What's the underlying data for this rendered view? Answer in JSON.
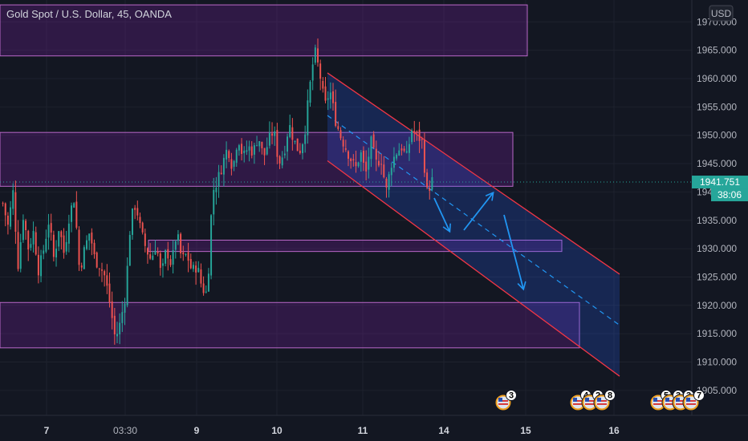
{
  "header": {
    "title": "Gold Spot / U.S. Dollar, 45, OANDA",
    "currency": "USD"
  },
  "price_axis": {
    "ticks": [
      "1970.000",
      "1965.000",
      "1960.000",
      "1955.000",
      "1950.000",
      "1945.000",
      "1940.000",
      "1935.000",
      "1930.000",
      "1925.000",
      "1920.000",
      "1915.000",
      "1910.000",
      "1905.000"
    ],
    "last_price": "1941.751",
    "countdown": "38:06",
    "last_price_color": "#26a69a"
  },
  "time_axis": {
    "labels": [
      {
        "text": "7",
        "bold": true
      },
      {
        "text": "03:30",
        "bold": false
      },
      {
        "text": "9",
        "bold": true
      },
      {
        "text": "10",
        "bold": true
      },
      {
        "text": "11",
        "bold": true
      },
      {
        "text": "14",
        "bold": true
      },
      {
        "text": "15",
        "bold": true
      },
      {
        "text": "16",
        "bold": true
      }
    ]
  },
  "events": [
    {
      "label": "3"
    },
    {
      "label": "4"
    },
    {
      "label": "2"
    },
    {
      "label": "8"
    },
    {
      "label": "5"
    },
    {
      "label": "3"
    },
    {
      "label": "3"
    },
    {
      "label": "7"
    }
  ],
  "colors": {
    "up": "#26a69a",
    "down": "#ef5350",
    "zone_fill": "#7b1fa2",
    "zone_border": "#ba68c8",
    "channel_fill": "#2962ff",
    "channel_border": "#f23645",
    "arrow": "#2196f3"
  },
  "chart_data": {
    "type": "candlestick",
    "instrument": "Gold Spot / U.S. Dollar",
    "timeframe": "45",
    "source": "OANDA",
    "ylim": [
      1903,
      1973
    ],
    "ticks": [
      1905,
      1910,
      1915,
      1920,
      1925,
      1930,
      1935,
      1940,
      1945,
      1950,
      1955,
      1960,
      1965,
      1970
    ],
    "last_price": 1941.751,
    "zones": [
      {
        "from": 1964,
        "to": 1973
      },
      {
        "from": 1941,
        "to": 1950.5
      },
      {
        "from": 1929.5,
        "to": 1931.5
      },
      {
        "from": 1912.5,
        "to": 1920.5
      }
    ],
    "channel": {
      "upper_start": 1961,
      "upper_end": 1925.5,
      "lower_start": 1945.5,
      "lower_end": 1907.5,
      "mid_start": 1953.5,
      "mid_end": 1916.5
    },
    "candle_path": [
      1938,
      1934,
      1940,
      1927,
      1936,
      1930,
      1933,
      1926,
      1930,
      1935,
      1928,
      1934,
      1929,
      1936,
      1939,
      1926,
      1930,
      1933,
      1928,
      1927,
      1925,
      1920,
      1914,
      1917,
      1922,
      1935,
      1938,
      1933,
      1930,
      1928,
      1931,
      1925,
      1930,
      1927,
      1933,
      1928,
      1929,
      1926,
      1927,
      1923,
      1922,
      1940,
      1942,
      1945,
      1948,
      1944,
      1950,
      1946,
      1948,
      1947,
      1950,
      1946,
      1949,
      1951,
      1945,
      1947,
      1952,
      1949,
      1947,
      1950,
      1958,
      1965,
      1961,
      1955,
      1958,
      1953,
      1950,
      1948,
      1946,
      1944,
      1947,
      1943,
      1949,
      1945,
      1946,
      1940,
      1945,
      1947,
      1948,
      1946,
      1951,
      1950,
      1949,
      1940,
      1942
    ]
  }
}
